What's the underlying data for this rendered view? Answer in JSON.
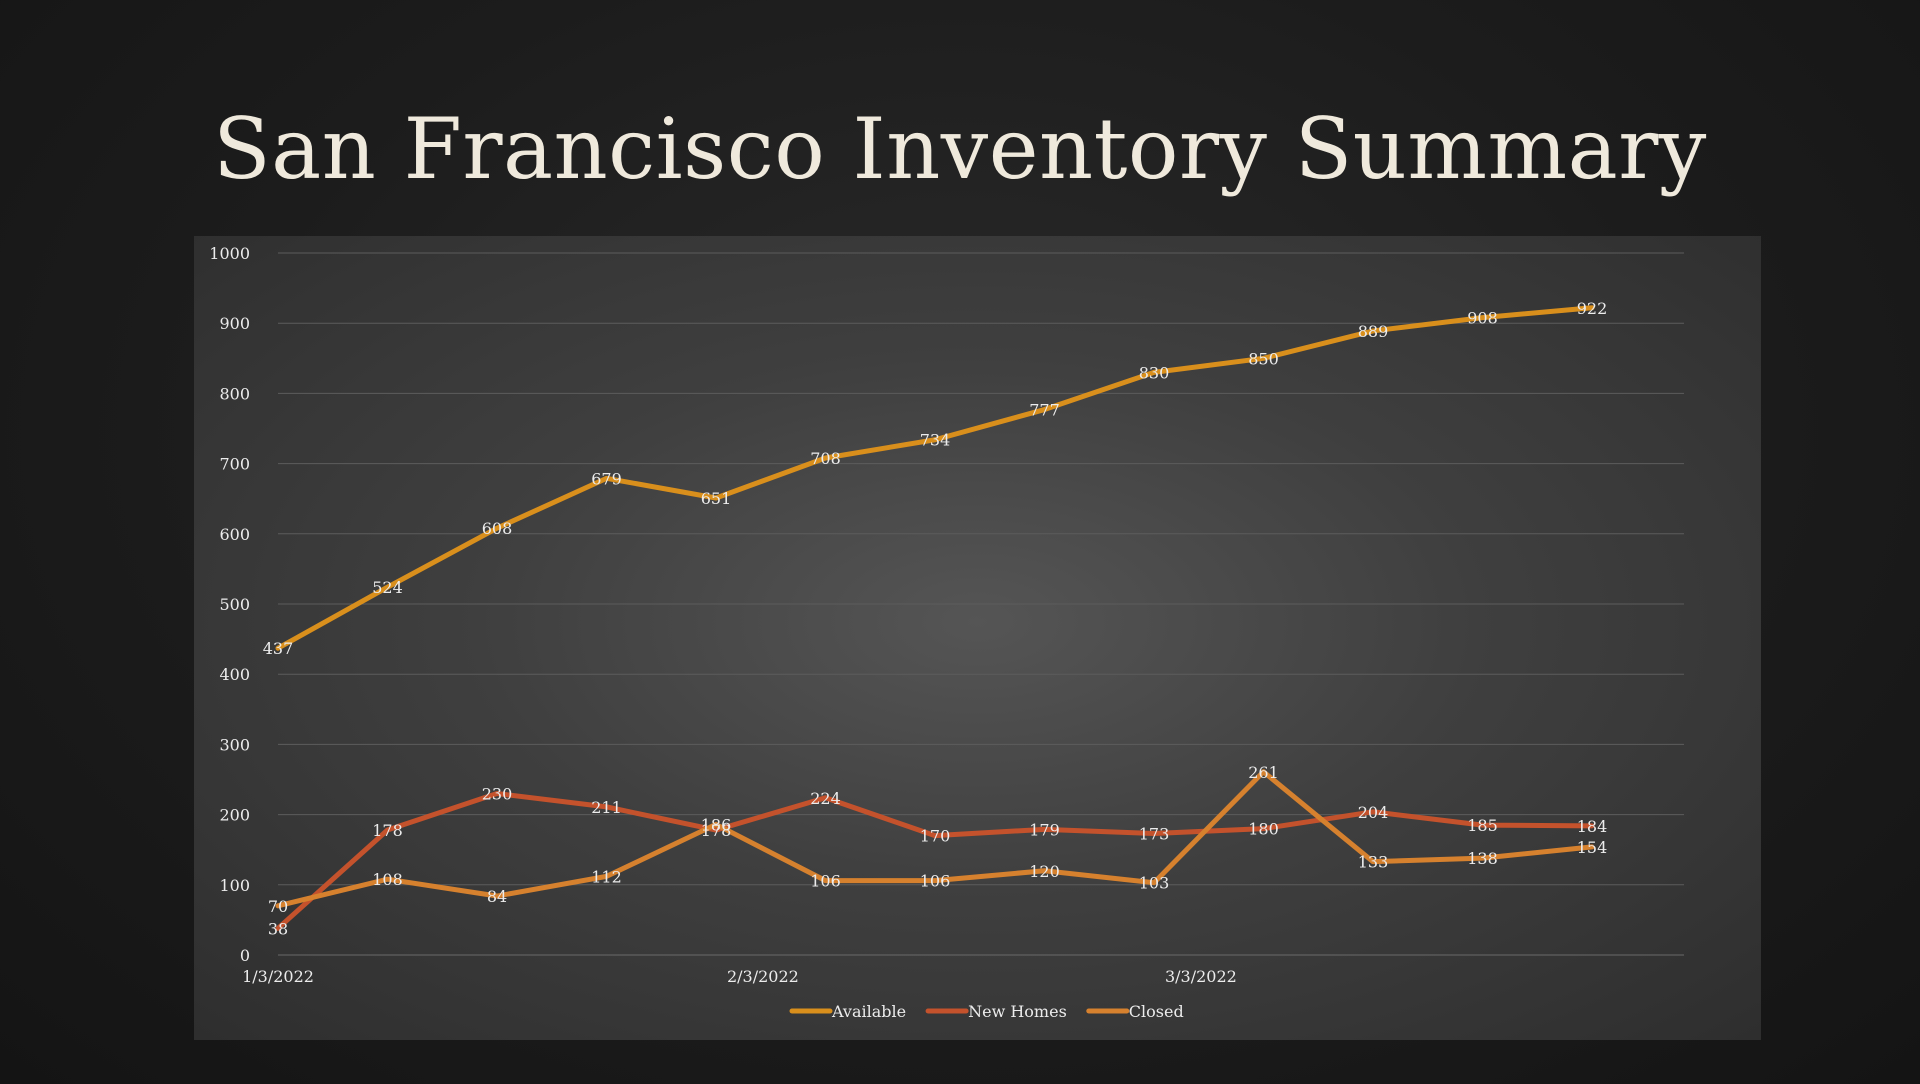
{
  "slide": {
    "title": "San Francisco Inventory Summary"
  },
  "chart_data": {
    "type": "line",
    "title": "",
    "x": [
      "1/3/2022",
      "1/10/2022",
      "1/17/2022",
      "1/24/2022",
      "1/31/2022",
      "2/7/2022",
      "2/14/2022",
      "2/21/2022",
      "2/28/2022",
      "3/7/2022",
      "3/14/2022",
      "3/21/2022",
      "3/28/2022"
    ],
    "x_tick_labels": [
      "1/3/2022",
      "2/3/2022",
      "3/3/2022"
    ],
    "x_tick_dates": [
      "1/3/2022",
      "2/3/2022",
      "3/3/2022"
    ],
    "ylim": [
      0,
      1000
    ],
    "y_ticks": [
      0,
      100,
      200,
      300,
      400,
      500,
      600,
      700,
      800,
      900,
      1000
    ],
    "grid": true,
    "legend_position": "bottom",
    "series": [
      {
        "name": "Available",
        "color": "#d98f1c",
        "values": [
          437,
          524,
          608,
          679,
          651,
          708,
          734,
          777,
          830,
          850,
          889,
          908,
          922
        ]
      },
      {
        "name": "New Homes",
        "color": "#c4522c",
        "values": [
          38,
          178,
          230,
          211,
          178,
          224,
          170,
          179,
          173,
          180,
          204,
          185,
          184
        ]
      },
      {
        "name": "Closed",
        "color": "#d6812e",
        "values": [
          70,
          108,
          84,
          112,
          186,
          106,
          106,
          120,
          103,
          261,
          133,
          138,
          154
        ]
      }
    ]
  }
}
